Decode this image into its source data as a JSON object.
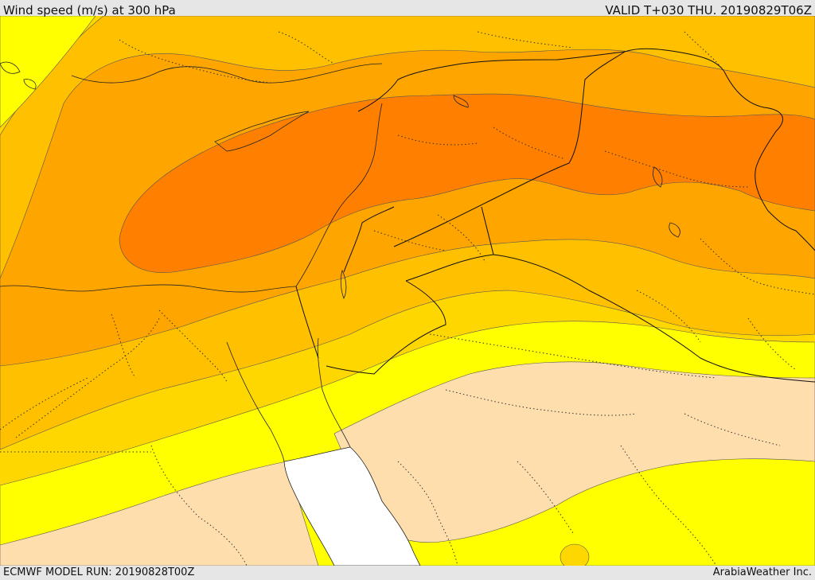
{
  "header": {
    "title": "Wind speed (m/s) at 300 hPa",
    "valid_time": "VALID T+030 THU. 20190829T06Z"
  },
  "footer": {
    "model_run": "ECMWF MODEL RUN: 20190828T00Z",
    "credit": "ArabiaWeather Inc."
  },
  "map": {
    "variable": "wind speed at 300 hPa",
    "colors": {
      "very_light": "#ffdead",
      "light_yellow": "#ffff00",
      "yellow_orange": "#ffd700",
      "light_orange": "#ffc000",
      "orange": "#ffa500",
      "dark_orange": "#ff7f00",
      "sea_white": "#ffffff"
    }
  }
}
